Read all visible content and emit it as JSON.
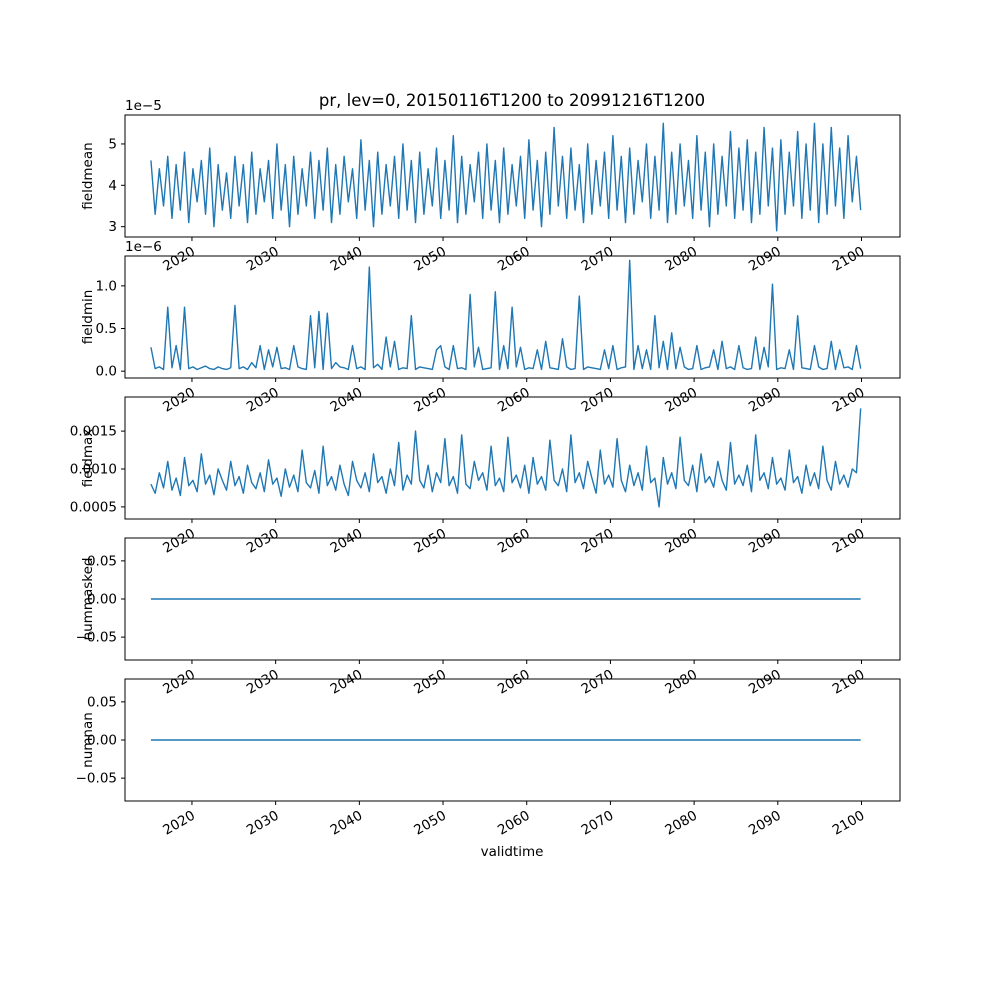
{
  "chart_data": {
    "type": "line",
    "title": "pr, lev=0, 20150116T1200 to 20991216T1200",
    "xlabel": "validtime",
    "line_color": "#1f77b4",
    "x_range": [
      2015.1,
      2099.9
    ],
    "xlim": [
      2012,
      2104.6
    ],
    "xticks": [
      2020,
      2030,
      2040,
      2050,
      2060,
      2070,
      2080,
      2090,
      2100
    ],
    "xtick_labels": [
      "2020",
      "2030",
      "2040",
      "2050",
      "2060",
      "2070",
      "2080",
      "2090",
      "2100"
    ],
    "legend": "none",
    "grid": false,
    "panels": [
      {
        "name": "fieldmean",
        "ylabel": "fieldmean",
        "offset_text": "1e−5",
        "unit_scale": "1e-5",
        "ylim": [
          2.75,
          5.7
        ],
        "yticks": [
          3,
          4,
          5
        ],
        "ytick_labels": [
          "3",
          "4",
          "5"
        ],
        "values": [
          4.6,
          3.3,
          4.4,
          3.5,
          4.7,
          3.2,
          4.5,
          3.4,
          4.8,
          3.1,
          4.4,
          3.6,
          4.6,
          3.3,
          4.9,
          3.0,
          4.5,
          3.4,
          4.3,
          3.2,
          4.7,
          3.5,
          4.5,
          3.1,
          4.8,
          3.3,
          4.4,
          3.6,
          4.6,
          3.2,
          5.0,
          3.4,
          4.5,
          3.0,
          4.7,
          3.3,
          4.4,
          3.5,
          4.8,
          3.2,
          4.6,
          3.4,
          4.9,
          3.1,
          4.5,
          3.3,
          4.7,
          3.6,
          4.4,
          3.2,
          5.1,
          3.4,
          4.6,
          3.0,
          4.8,
          3.3,
          4.5,
          3.5,
          4.7,
          3.2,
          5.0,
          3.4,
          4.6,
          3.1,
          4.8,
          3.3,
          4.4,
          3.5,
          4.9,
          3.2,
          4.6,
          3.4,
          5.2,
          3.1,
          4.7,
          3.3,
          4.5,
          3.6,
          4.8,
          3.2,
          5.0,
          3.4,
          4.6,
          3.1,
          4.9,
          3.3,
          4.5,
          3.5,
          4.7,
          3.2,
          5.1,
          3.4,
          4.6,
          3.0,
          4.8,
          3.3,
          5.4,
          3.5,
          4.7,
          3.2,
          4.9,
          3.4,
          4.5,
          3.1,
          5.0,
          3.3,
          4.6,
          3.5,
          4.8,
          3.2,
          5.2,
          3.4,
          4.7,
          3.1,
          4.9,
          3.3,
          4.6,
          3.6,
          5.0,
          3.2,
          4.7,
          3.4,
          5.5,
          3.1,
          4.8,
          3.3,
          5.0,
          3.5,
          4.6,
          3.2,
          5.2,
          3.4,
          4.8,
          3.0,
          5.0,
          3.3,
          4.7,
          3.5,
          5.3,
          3.2,
          4.9,
          3.4,
          5.1,
          3.1,
          4.8,
          3.3,
          5.4,
          3.5,
          4.9,
          2.9,
          5.1,
          3.3,
          4.8,
          3.5,
          5.3,
          3.2,
          5.0,
          3.4,
          5.5,
          3.1,
          5.0,
          3.3,
          5.4,
          3.5,
          4.9,
          3.2,
          5.2,
          3.6,
          4.7,
          3.4
        ]
      },
      {
        "name": "fieldmin",
        "ylabel": "fieldmin",
        "offset_text": "1e−6",
        "unit_scale": "1e-6",
        "ylim": [
          -0.08,
          1.35
        ],
        "yticks": [
          0.0,
          0.5,
          1.0
        ],
        "ytick_labels": [
          "0.0",
          "0.5",
          "1.0"
        ],
        "values": [
          0.28,
          0.03,
          0.05,
          0.02,
          0.75,
          0.04,
          0.3,
          0.02,
          0.75,
          0.03,
          0.05,
          0.02,
          0.04,
          0.06,
          0.03,
          0.02,
          0.05,
          0.03,
          0.02,
          0.04,
          0.77,
          0.03,
          0.05,
          0.02,
          0.1,
          0.04,
          0.3,
          0.02,
          0.25,
          0.05,
          0.28,
          0.03,
          0.04,
          0.02,
          0.3,
          0.05,
          0.03,
          0.02,
          0.65,
          0.04,
          0.7,
          0.02,
          0.68,
          0.03,
          0.1,
          0.05,
          0.04,
          0.02,
          0.3,
          0.03,
          0.05,
          0.02,
          1.22,
          0.04,
          0.08,
          0.02,
          0.4,
          0.05,
          0.35,
          0.02,
          0.04,
          0.03,
          0.65,
          0.02,
          0.05,
          0.04,
          0.03,
          0.02,
          0.25,
          0.3,
          0.05,
          0.02,
          0.3,
          0.03,
          0.04,
          0.02,
          0.9,
          0.05,
          0.28,
          0.02,
          0.03,
          0.04,
          0.93,
          0.02,
          0.3,
          0.03,
          0.75,
          0.05,
          0.28,
          0.02,
          0.04,
          0.03,
          0.25,
          0.02,
          0.35,
          0.04,
          0.03,
          0.02,
          0.38,
          0.05,
          0.02,
          0.03,
          0.88,
          0.02,
          0.05,
          0.04,
          0.03,
          0.02,
          0.25,
          0.03,
          0.3,
          0.02,
          0.04,
          0.05,
          1.3,
          0.02,
          0.3,
          0.03,
          0.25,
          0.02,
          0.65,
          0.04,
          0.35,
          0.02,
          0.45,
          0.03,
          0.28,
          0.05,
          0.02,
          0.03,
          0.3,
          0.02,
          0.04,
          0.05,
          0.25,
          0.02,
          0.35,
          0.03,
          0.05,
          0.02,
          0.3,
          0.04,
          0.02,
          0.03,
          0.4,
          0.02,
          0.28,
          0.05,
          1.02,
          0.02,
          0.04,
          0.03,
          0.25,
          0.02,
          0.65,
          0.04,
          0.03,
          0.02,
          0.3,
          0.05,
          0.02,
          0.03,
          0.35,
          0.02,
          0.25,
          0.04,
          0.05,
          0.02,
          0.3,
          0.03
        ]
      },
      {
        "name": "fieldmax",
        "ylabel": "fieldmax",
        "offset_text": "",
        "unit_scale": "1e-3",
        "ylim": [
          0.34,
          1.95
        ],
        "yticks": [
          0.5,
          1.0,
          1.5
        ],
        "ytick_labels": [
          "0.0005",
          "0.0010",
          "0.0015"
        ],
        "values": [
          0.8,
          0.68,
          0.95,
          0.75,
          1.1,
          0.72,
          0.88,
          0.65,
          1.15,
          0.78,
          0.85,
          0.7,
          1.2,
          0.8,
          0.92,
          0.66,
          1.0,
          0.85,
          0.72,
          1.1,
          0.78,
          0.9,
          0.68,
          1.05,
          0.82,
          0.74,
          0.95,
          0.7,
          1.12,
          0.8,
          0.88,
          0.64,
          1.0,
          0.76,
          0.92,
          0.7,
          1.25,
          0.82,
          0.75,
          0.98,
          0.68,
          1.3,
          0.78,
          0.9,
          0.72,
          1.05,
          0.8,
          0.65,
          1.1,
          0.85,
          0.75,
          0.95,
          0.7,
          1.2,
          0.82,
          0.9,
          0.68,
          1.0,
          0.78,
          1.35,
          0.72,
          0.92,
          0.8,
          1.5,
          0.85,
          0.75,
          1.05,
          0.7,
          0.95,
          0.82,
          1.4,
          0.78,
          0.9,
          0.68,
          1.45,
          0.8,
          0.74,
          1.1,
          0.85,
          0.95,
          0.72,
          1.3,
          0.78,
          0.88,
          0.7,
          1.42,
          0.82,
          0.92,
          0.75,
          1.05,
          0.68,
          1.15,
          0.8,
          0.9,
          0.72,
          1.38,
          0.85,
          0.78,
          1.0,
          0.7,
          1.45,
          0.82,
          0.95,
          0.74,
          1.1,
          0.88,
          0.68,
          1.25,
          0.8,
          0.92,
          0.76,
          1.4,
          0.85,
          0.7,
          1.05,
          0.78,
          0.95,
          0.72,
          1.3,
          0.82,
          0.88,
          0.5,
          1.15,
          0.8,
          0.95,
          0.74,
          1.42,
          0.85,
          0.78,
          1.05,
          0.7,
          1.2,
          0.82,
          0.9,
          0.76,
          1.1,
          0.85,
          0.72,
          1.35,
          0.8,
          0.92,
          0.78,
          1.05,
          0.7,
          1.45,
          0.85,
          0.95,
          0.74,
          1.15,
          0.8,
          0.88,
          0.72,
          1.25,
          0.82,
          0.9,
          0.68,
          1.05,
          0.78,
          0.95,
          0.74,
          1.3,
          0.85,
          0.72,
          1.1,
          0.8,
          0.92,
          0.76,
          1.0,
          0.95,
          1.8
        ]
      },
      {
        "name": "nummasked",
        "ylabel": "nummasked",
        "offset_text": "",
        "unit_scale": "1",
        "ylim": [
          -0.08,
          0.08
        ],
        "yticks": [
          -0.05,
          0.0,
          0.05
        ],
        "ytick_labels": [
          "−0.05",
          "0.00",
          "0.05"
        ],
        "values": [
          0,
          0
        ]
      },
      {
        "name": "numnan",
        "ylabel": "numnan",
        "offset_text": "",
        "unit_scale": "1",
        "ylim": [
          -0.08,
          0.08
        ],
        "yticks": [
          -0.05,
          0.0,
          0.05
        ],
        "ytick_labels": [
          "−0.05",
          "0.00",
          "0.05"
        ],
        "values": [
          0,
          0
        ]
      }
    ]
  }
}
